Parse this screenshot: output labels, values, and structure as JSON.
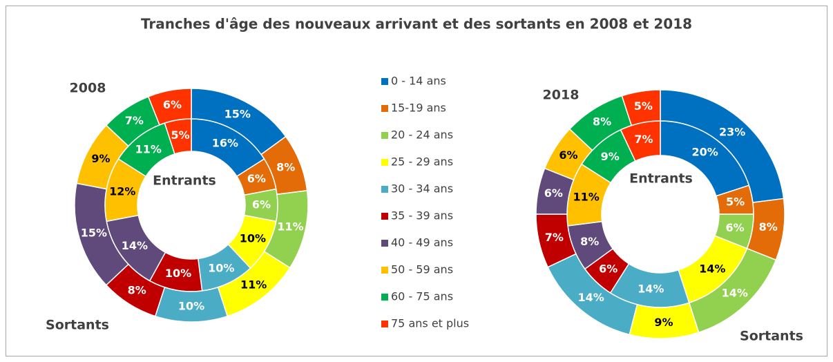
{
  "title": "Tranches d'âge des nouveaux arrivant et des sortants en 2008 et 2018",
  "legend": {
    "categories": [
      "0 - 14 ans",
      "15-19 ans",
      "20 - 24 ans",
      "25 - 29 ans",
      "30 - 34 ans",
      "35 - 39 ans",
      "40 - 49 ans",
      "50 - 59 ans",
      "60 - 75 ans",
      "75 ans et plus"
    ],
    "colors": [
      "#0070c0",
      "#e36c09",
      "#92d050",
      "#ffff00",
      "#4bacc6",
      "#c00000",
      "#604a7b",
      "#ffc000",
      "#00b050",
      "#ff3300"
    ]
  },
  "chart_data": [
    {
      "type": "doughnut",
      "label": "2008",
      "series": [
        {
          "name": "Entrants",
          "values": [
            16,
            6,
            6,
            10,
            10,
            10,
            14,
            12,
            11,
            5
          ],
          "value_labels": [
            "16%",
            "6%",
            "6%",
            "10%",
            "10%",
            "10%",
            "14%",
            "12%",
            "11%",
            "5%"
          ]
        },
        {
          "name": "Sortants",
          "values": [
            15,
            8,
            11,
            11,
            10,
            8,
            15,
            9,
            7,
            6
          ],
          "value_labels": [
            "15%",
            "8%",
            "11%",
            "11%",
            "10%",
            "8%",
            "15%",
            "9%",
            "7%",
            "6%"
          ]
        }
      ]
    },
    {
      "type": "doughnut",
      "label": "2018",
      "series": [
        {
          "name": "Entrants",
          "values": [
            20,
            5,
            6,
            14,
            14,
            6,
            8,
            11,
            9,
            7
          ],
          "value_labels": [
            "20%",
            "5%",
            "6%",
            "14%",
            "14%",
            "6%",
            "8%",
            "11%",
            "9%",
            "7%"
          ]
        },
        {
          "name": "Sortants",
          "values": [
            23,
            8,
            14,
            9,
            14,
            7,
            6,
            6,
            8,
            5
          ],
          "value_labels": [
            "23%",
            "8%",
            "14%",
            "9%",
            "14%",
            "7%",
            "6%",
            "6%",
            "8%",
            "5%"
          ]
        }
      ]
    }
  ]
}
